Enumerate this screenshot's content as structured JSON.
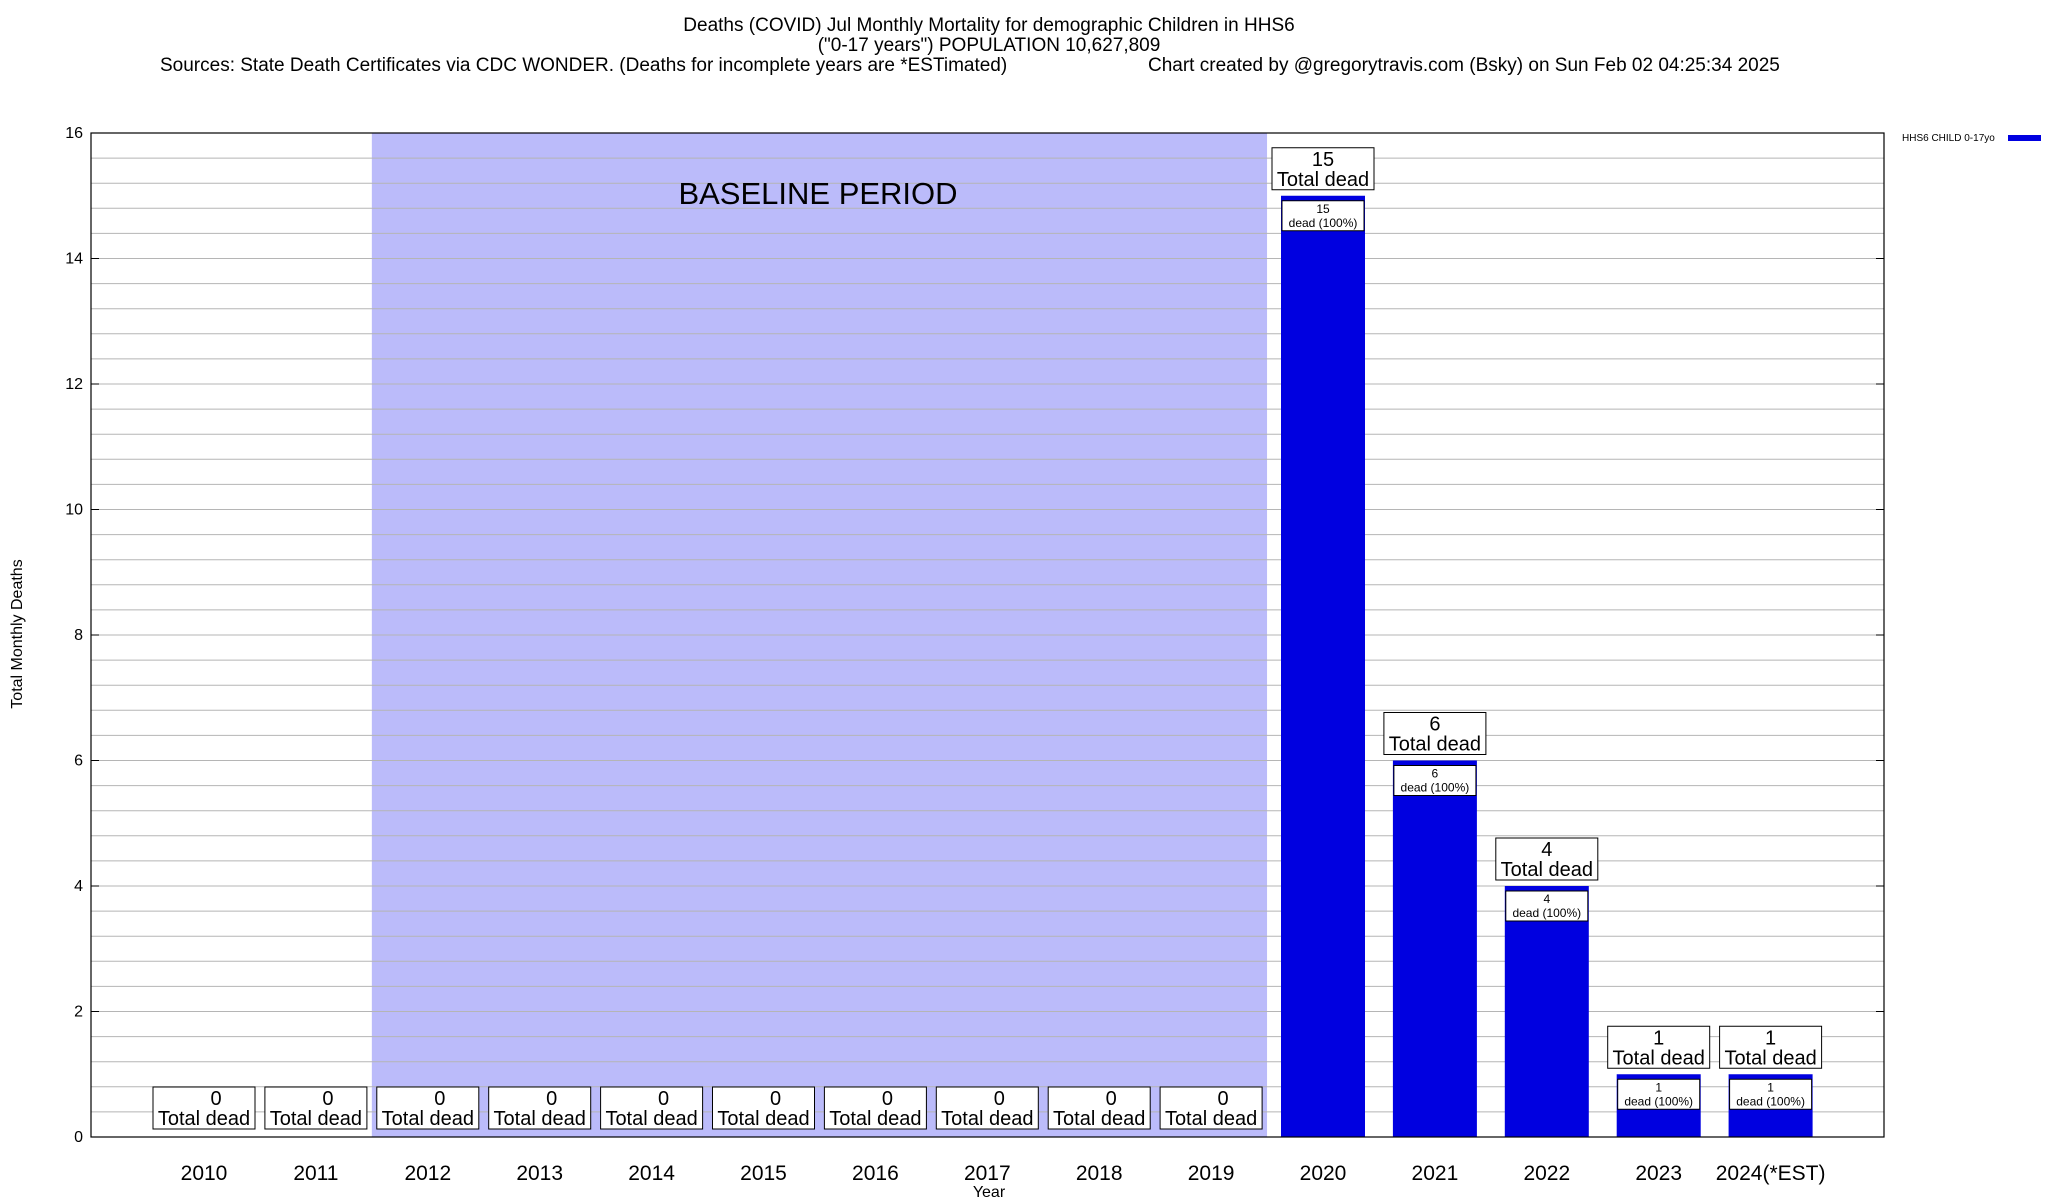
{
  "chart_data": {
    "type": "bar",
    "title_line1": "Deaths (COVID) Jul Monthly Mortality for demographic Children in HHS6",
    "title_line2": "(\"0-17 years\") POPULATION 10,627,809",
    "subtitle_sources": "Sources: State Death Certificates via CDC WONDER. (Deaths for incomplete years are *ESTimated)",
    "subtitle_credit": "Chart created by @gregorytravis.com (Bsky) on Sun Feb 02 04:25:34 2025",
    "xlabel": "Year",
    "ylabel": "Total Monthly Deaths",
    "ylim": [
      0,
      16
    ],
    "y_ticks": [
      "0",
      "2",
      "4",
      "6",
      "8",
      "10",
      "12",
      "14",
      "16"
    ],
    "grid": true,
    "legend_position": "top-right",
    "baseline_label": "BASELINE PERIOD",
    "baseline_range": [
      "2012",
      "2019"
    ],
    "categories": [
      "2010",
      "2011",
      "2012",
      "2013",
      "2014",
      "2015",
      "2016",
      "2017",
      "2018",
      "2019",
      "2020",
      "2021",
      "2022",
      "2023",
      "2024(*EST)"
    ],
    "series": [
      {
        "name": "HHS6 CHILD 0-17yo",
        "color": "#0000e0",
        "values": [
          0,
          0,
          0,
          0,
          0,
          0,
          0,
          0,
          0,
          0,
          15,
          6,
          4,
          1,
          1
        ]
      }
    ],
    "total_box_labels": [
      "0",
      "0",
      "0",
      "0",
      "0",
      "0",
      "0",
      "0",
      "0",
      "0",
      "15",
      "6",
      "4",
      "1",
      "1"
    ],
    "total_box_caption": "Total dead",
    "bar_inner_labels": [
      "",
      "",
      "",
      "",
      "",
      "",
      "",
      "",
      "",
      "",
      "15",
      "6",
      "4",
      "1",
      "1"
    ],
    "bar_inner_caption": "dead (100%)",
    "baseline_color": "#bbbbfa"
  }
}
